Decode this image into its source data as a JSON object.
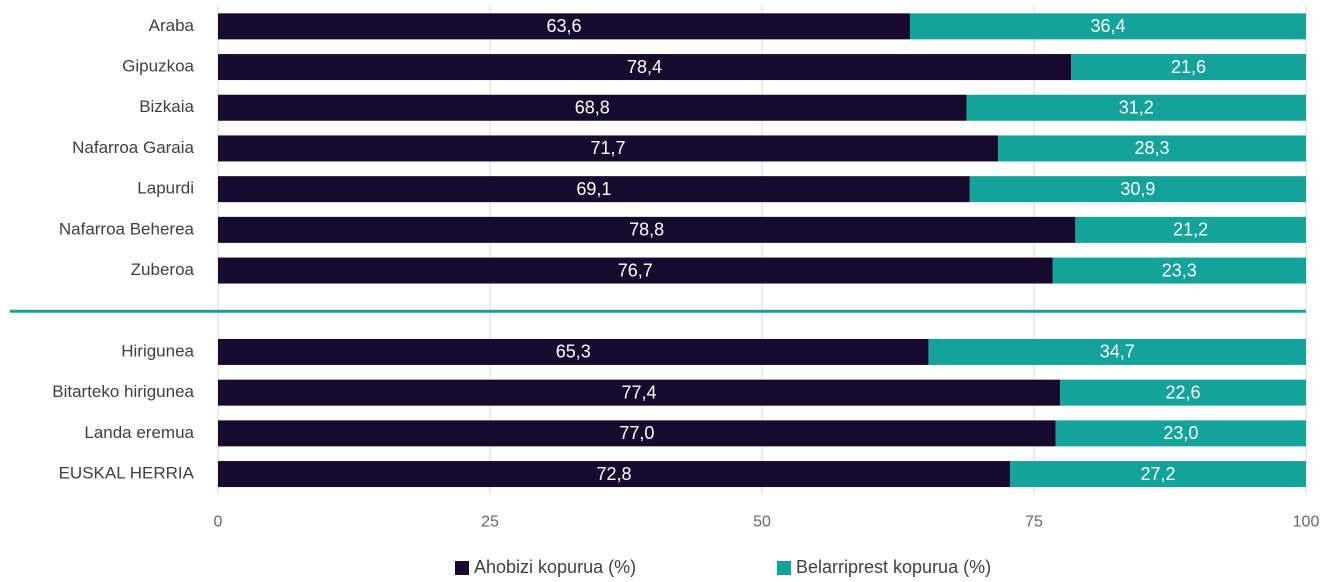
{
  "chart_data": {
    "type": "stacked_bar_horizontal",
    "categories": [
      "Araba",
      "Gipuzkoa",
      "Bizkaia",
      "Nafarroa Garaia",
      "Lapurdi",
      "Nafarroa Beherea",
      "Zuberoa",
      null,
      "Hirigunea",
      "Bitarteko hirigunea",
      "Landa eremua",
      "EUSKAL HERRIA"
    ],
    "series": [
      {
        "name": "Ahobizi kopurua (%)",
        "color": "#170a2e",
        "values": [
          63.6,
          78.4,
          68.8,
          71.7,
          69.1,
          78.8,
          76.7,
          null,
          65.3,
          77.4,
          77.0,
          72.8
        ],
        "value_labels": [
          "63,6",
          "78,4",
          "68,8",
          "71,7",
          "69,1",
          "78,8",
          "76,7",
          null,
          "65,3",
          "77,4",
          "77,0",
          "72,8"
        ]
      },
      {
        "name": "Belarriprest kopurua (%)",
        "color": "#14a39a",
        "values": [
          36.4,
          21.6,
          31.2,
          28.3,
          30.9,
          21.2,
          23.3,
          null,
          34.7,
          22.6,
          23.0,
          27.2
        ],
        "value_labels": [
          "36,4",
          "21,6",
          "31,2",
          "28,3",
          "30,9",
          "21,2",
          "23,3",
          null,
          "34,7",
          "22,6",
          "23,0",
          "27,2"
        ]
      }
    ],
    "xlim": [
      0,
      100
    ],
    "xticks": [
      0,
      25,
      50,
      75,
      100
    ],
    "grid": true,
    "legend": "bottom"
  }
}
